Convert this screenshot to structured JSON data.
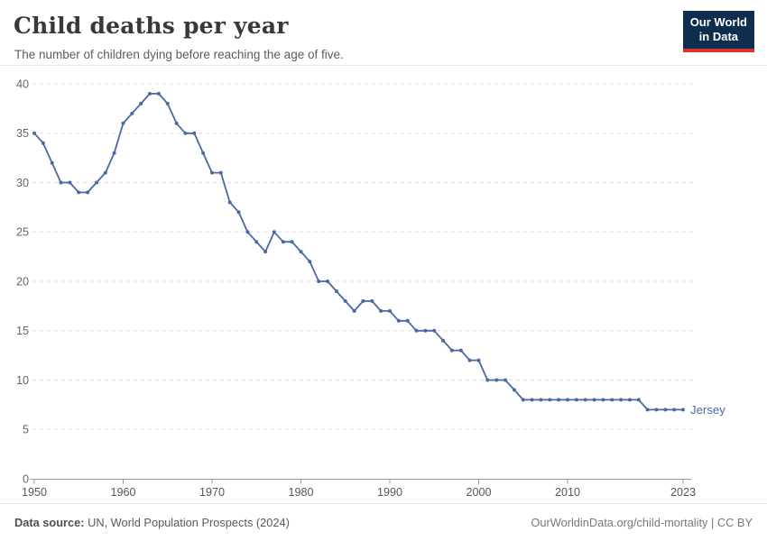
{
  "header": {
    "title": "Child deaths per year",
    "subtitle": "The number of children dying before reaching the age of five.",
    "logo": {
      "line1": "Our World",
      "line2": "in Data"
    }
  },
  "chart_data": {
    "type": "line",
    "title": "Child deaths per year",
    "subtitle": "The number of children dying before reaching the age of five.",
    "xlabel": "",
    "ylabel": "",
    "ylim": [
      0,
      40
    ],
    "yticks": [
      0,
      5,
      10,
      15,
      20,
      25,
      30,
      35,
      40
    ],
    "xticks": [
      1950,
      1960,
      1970,
      1980,
      1990,
      2000,
      2010,
      2023
    ],
    "grid": "horizontal-dashed",
    "legend_position": "end-of-line-label",
    "x": [
      1950,
      1951,
      1952,
      1953,
      1954,
      1955,
      1956,
      1957,
      1958,
      1959,
      1960,
      1961,
      1962,
      1963,
      1964,
      1965,
      1966,
      1967,
      1968,
      1969,
      1970,
      1971,
      1972,
      1973,
      1974,
      1975,
      1976,
      1977,
      1978,
      1979,
      1980,
      1981,
      1982,
      1983,
      1984,
      1985,
      1986,
      1987,
      1988,
      1989,
      1990,
      1991,
      1992,
      1993,
      1994,
      1995,
      1996,
      1997,
      1998,
      1999,
      2000,
      2001,
      2002,
      2003,
      2004,
      2005,
      2006,
      2007,
      2008,
      2009,
      2010,
      2011,
      2012,
      2013,
      2014,
      2015,
      2016,
      2017,
      2018,
      2019,
      2020,
      2021,
      2022,
      2023
    ],
    "series": [
      {
        "name": "Jersey",
        "color": "#4a69a3",
        "values": [
          35,
          34,
          32,
          30,
          30,
          29,
          29,
          30,
          31,
          33,
          36,
          37,
          38,
          39,
          39,
          38,
          36,
          35,
          35,
          33,
          31,
          31,
          28,
          27,
          25,
          24,
          23,
          25,
          24,
          24,
          23,
          22,
          20,
          20,
          19,
          18,
          17,
          18,
          18,
          17,
          17,
          16,
          16,
          15,
          15,
          15,
          14,
          13,
          13,
          12,
          12,
          10,
          10,
          10,
          9,
          8,
          8,
          8,
          8,
          8,
          8,
          8,
          8,
          8,
          8,
          8,
          8,
          8,
          8,
          7,
          7,
          7,
          7,
          7
        ]
      }
    ]
  },
  "colors": {
    "line": "#4a69a3",
    "gridline": "#dcdcdc",
    "axis": "#999999",
    "y_label": "#666666",
    "x_label": "#565656",
    "logo_bg": "#0f2d4e",
    "logo_red": "#d7382e"
  },
  "footer": {
    "source_label": "Data source:",
    "source_text": " UN, World Population Prospects (2024)",
    "credit": "OurWorldinData.org/child-mortality | CC BY"
  }
}
